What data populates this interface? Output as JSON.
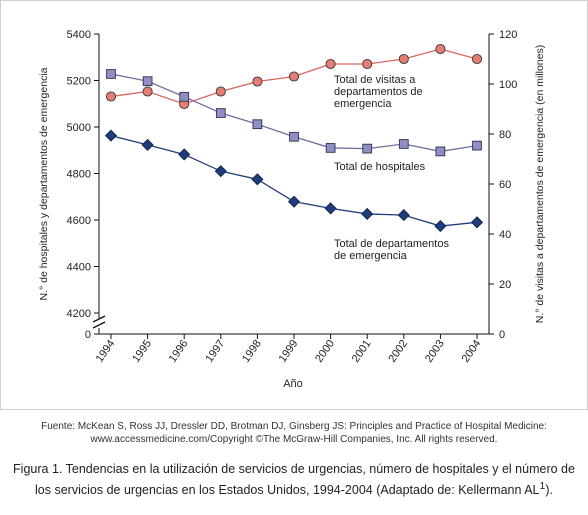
{
  "chart_data": {
    "type": "line",
    "x": [
      "1994",
      "1995",
      "1996",
      "1997",
      "1998",
      "1999",
      "2000",
      "2001",
      "2002",
      "2003",
      "2004"
    ],
    "xlabel": "Año",
    "ylabel_left": "N.° de hospitales y departamentos de emergencia",
    "ylabel_right": "N.° de visitas a departamentos de emergencia (en millones)",
    "ylim_left": [
      4200,
      5400
    ],
    "yticks_left": [
      4200,
      4400,
      4600,
      4800,
      5000,
      5200,
      5400
    ],
    "ylim_right": [
      0,
      120
    ],
    "yticks_right": [
      0,
      20,
      40,
      60,
      80,
      100,
      120
    ],
    "left_axis_break": true,
    "left_axis_zero_label": "0",
    "grid": false,
    "series": [
      {
        "name": "Total de visitas a departamentos de emergencia",
        "axis": "right",
        "color": "#e67d74",
        "marker": "circle",
        "values": [
          95,
          97,
          92,
          97,
          101,
          103,
          108,
          108,
          110,
          114,
          110
        ]
      },
      {
        "name": "Total de hospitales",
        "axis": "left",
        "color": "#8f8fc4",
        "marker": "square",
        "values": [
          5228,
          5197,
          5130,
          5060,
          5012,
          4958,
          4910,
          4907,
          4927,
          4895,
          4920
        ]
      },
      {
        "name": "Total de departamentos de emergencia",
        "axis": "left",
        "color": "#1f3d7a",
        "marker": "diamond",
        "values": [
          4963,
          4923,
          4882,
          4810,
          4775,
          4679,
          4650,
          4626,
          4621,
          4574,
          4590
        ]
      }
    ],
    "annotations": [
      {
        "series": 0,
        "lines": [
          "Total de visitas a",
          "departamentos de",
          "emergencia"
        ]
      },
      {
        "series": 1,
        "lines": [
          "Total de hospitales"
        ]
      },
      {
        "series": 2,
        "lines": [
          "Total de departamentos",
          "de emergencia"
        ]
      }
    ]
  },
  "source_note": "Fuente: McKean S, Ross JJ, Dressler DD, Brotman DJ, Ginsberg JS: Principles and Practice of Hospital Medicine: www.accessmedicine.com/Copyright ©The McGraw-Hill Companies, Inc. All rights reserved.",
  "caption": {
    "text": "Figura 1. Tendencias en la utilización de servicios de urgencias, número de hospitales y el número de los servicios de urgencias en los Estados Unidos, 1994-2004 (Adaptado de: Kellermann AL",
    "superscript": "1",
    "end": ")."
  }
}
